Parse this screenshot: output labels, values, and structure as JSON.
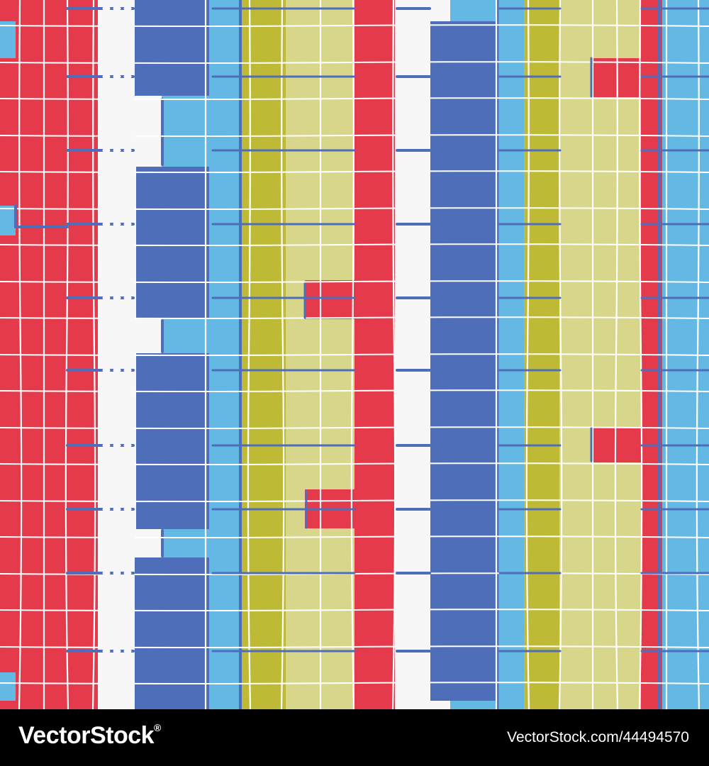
{
  "palette": {
    "red": "#E43A4B",
    "royal_blue": "#4F6EBA",
    "sky_blue": "#63B9E3",
    "olive": "#BFBA36",
    "khaki": "#D8D68A",
    "white": "#F7F7F7",
    "line": "#FFFFFF",
    "dash_blue": "#4F6EBA"
  },
  "pattern": {
    "description_icon": "abstract-vertical-stripes-hand-drawn-grid"
  },
  "footer": {
    "brand": "VectorStock",
    "trademark": "®",
    "image_id": "VectorStock.com/44494570",
    "background": "#000000",
    "text_color": "#FFFFFF"
  }
}
